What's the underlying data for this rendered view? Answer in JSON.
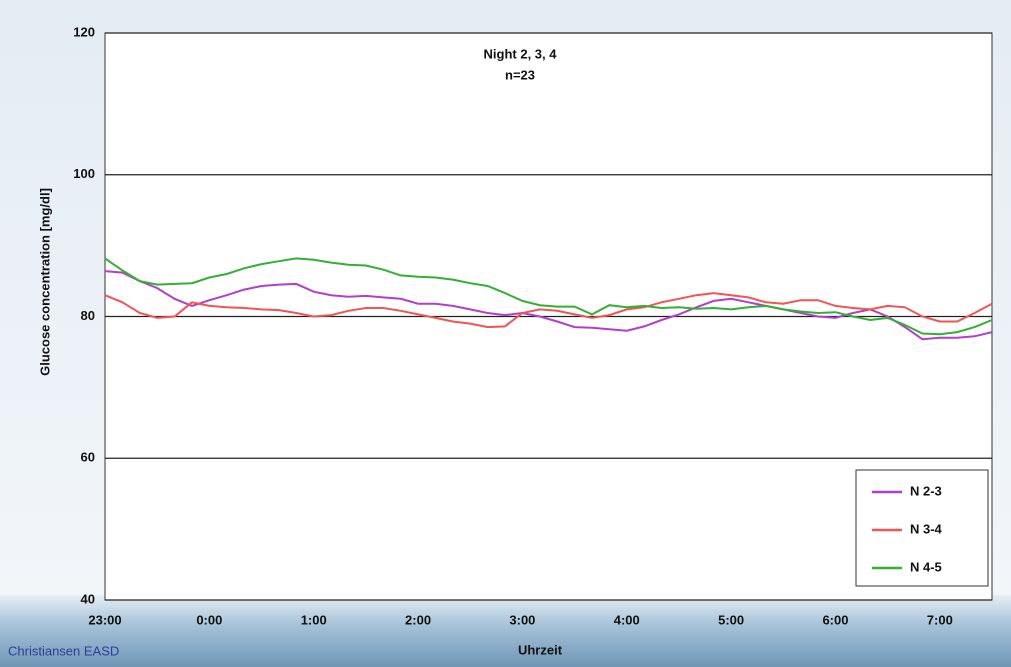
{
  "chart_data": {
    "type": "line",
    "title": "Night 2, 3, 4",
    "subtitle": "n=23",
    "y_label": "Glucose concentration [mg/dl]",
    "x_label": "Uhrzeit",
    "footer": "Christiansen EASD",
    "categories": [
      "23:00",
      null,
      null,
      null,
      null,
      null,
      "0:00",
      null,
      null,
      null,
      null,
      null,
      "1:00",
      null,
      null,
      null,
      null,
      null,
      "2:00",
      null,
      null,
      null,
      null,
      null,
      "3:00",
      null,
      null,
      null,
      null,
      null,
      "4:00",
      null,
      null,
      null,
      null,
      null,
      "5:00",
      null,
      null,
      null,
      null,
      null,
      "6:00",
      null,
      null,
      null,
      null,
      null,
      "7:00",
      null,
      null,
      null
    ],
    "series": [
      {
        "name": "N 2-3",
        "color": "#b23fc9",
        "values": [
          86.4,
          86.2,
          85,
          84,
          82.5,
          81.5,
          82.3,
          83,
          83.8,
          84.3,
          84.5,
          84.6,
          83.5,
          83,
          82.8,
          82.9,
          82.7,
          82.5,
          81.8,
          81.8,
          81.5,
          81,
          80.5,
          80.2,
          80.5,
          80,
          79.3,
          78.5,
          78.4,
          78.2,
          78,
          78.6,
          79.5,
          80.3,
          81.3,
          82.2,
          82.5,
          82,
          81.5,
          81,
          80.5,
          80,
          79.8,
          80.5,
          81,
          80,
          78.5,
          76.8,
          77,
          77,
          77.2,
          77.8
        ]
      },
      {
        "name": "N 3-4",
        "color": "#f25454",
        "values": [
          83,
          82,
          80.5,
          79.8,
          80,
          82,
          81.5,
          81.3,
          81.2,
          81,
          80.9,
          80.5,
          80,
          80.2,
          80.8,
          81.2,
          81.2,
          80.8,
          80.3,
          79.8,
          79.3,
          79,
          78.5,
          78.6,
          80.5,
          81,
          80.8,
          80.3,
          79.8,
          80.2,
          81,
          81.3,
          82,
          82.5,
          83,
          83.3,
          83,
          82.7,
          82,
          81.8,
          82.3,
          82.3,
          81.5,
          81.2,
          81,
          81.5,
          81.3,
          80,
          79.3,
          79.3,
          80.5,
          81.8
        ]
      },
      {
        "name": "N 4-5",
        "color": "#33b033",
        "values": [
          88.2,
          86.5,
          85,
          84.5,
          84.6,
          84.7,
          85.5,
          86,
          86.8,
          87.4,
          87.8,
          88.2,
          88,
          87.6,
          87.3,
          87.2,
          86.6,
          85.8,
          85.6,
          85.5,
          85.2,
          84.7,
          84.3,
          83.3,
          82.2,
          81.6,
          81.4,
          81.4,
          80.3,
          81.6,
          81.3,
          81.5,
          81.2,
          81.3,
          81.1,
          81.2,
          81,
          81.3,
          81.5,
          81,
          80.7,
          80.5,
          80.6,
          80,
          79.5,
          79.8,
          78.8,
          77.6,
          77.5,
          77.8,
          78.5,
          79.5
        ]
      }
    ],
    "ylim": [
      40,
      120
    ],
    "yticks": [
      40,
      60,
      80,
      100,
      120
    ],
    "grid": true,
    "legend": "lower right"
  }
}
